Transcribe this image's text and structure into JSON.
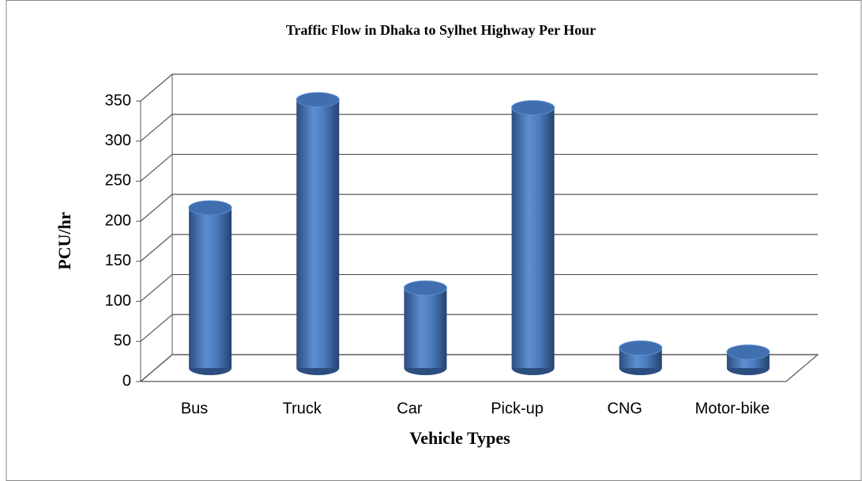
{
  "chart_data": {
    "type": "bar",
    "title": "Traffic Flow in Dhaka to Sylhet Highway Per Hour",
    "x_label": "Vehicle Types",
    "y_label": "PCU/hr",
    "categories": [
      "Bus",
      "Truck",
      "Car",
      "Pick-up",
      "CNG",
      "Motor-bike"
    ],
    "values": [
      200,
      335,
      100,
      325,
      25,
      20
    ],
    "color": "#4f81bd",
    "ylim": [
      0,
      350
    ],
    "yticks": [
      0,
      50,
      100,
      150,
      200,
      250,
      300,
      350
    ],
    "grid": true
  }
}
